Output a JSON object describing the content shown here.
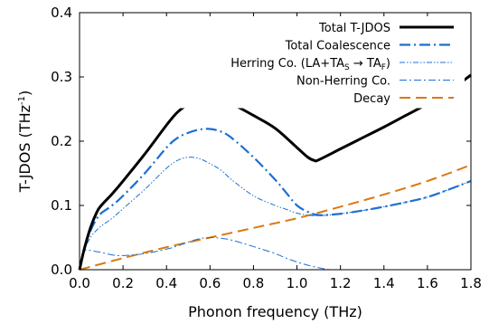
{
  "chart_data": {
    "type": "line",
    "xlabel": "Phonon frequency (THz)",
    "ylabel": "T-JDOS (THz",
    "ylabel_sup": "-1",
    "ylabel_end": ")",
    "xlim": [
      0,
      1.8
    ],
    "ylim": [
      0,
      0.4
    ],
    "x_ticks": [
      "0.0",
      "0.2",
      "0.4",
      "0.6",
      "0.8",
      "1.0",
      "1.2",
      "1.4",
      "1.6",
      "1.8"
    ],
    "y_ticks": [
      "0.0",
      "0.1",
      "0.2",
      "0.3",
      "0.4"
    ],
    "grid": false,
    "legend_position": "top-right",
    "series": [
      {
        "name": "Total T-JDOS",
        "color": "#000000",
        "style": "solid",
        "x": [
          0.0,
          0.02,
          0.05,
          0.08,
          0.1,
          0.15,
          0.2,
          0.3,
          0.4,
          0.45,
          0.5,
          0.55,
          0.6,
          0.65,
          0.7,
          0.8,
          0.9,
          1.0,
          1.05,
          1.08,
          1.1,
          1.2,
          1.3,
          1.4,
          1.5,
          1.6,
          1.7,
          1.8
        ],
        "y": [
          0.0,
          0.03,
          0.065,
          0.09,
          0.1,
          0.118,
          0.138,
          0.18,
          0.225,
          0.245,
          0.257,
          0.262,
          0.265,
          0.263,
          0.258,
          0.24,
          0.22,
          0.19,
          0.175,
          0.17,
          0.171,
          0.188,
          0.205,
          0.222,
          0.24,
          0.258,
          0.278,
          0.303
        ]
      },
      {
        "name": "Total Coalescence",
        "color": "#1c6fd2",
        "style": "dash-dot",
        "x": [
          0.0,
          0.02,
          0.05,
          0.08,
          0.1,
          0.15,
          0.2,
          0.3,
          0.4,
          0.45,
          0.5,
          0.55,
          0.6,
          0.65,
          0.7,
          0.8,
          0.9,
          0.95,
          1.0,
          1.05,
          1.1,
          1.2,
          1.3,
          1.4,
          1.5,
          1.6,
          1.7,
          1.8
        ],
        "y": [
          0.0,
          0.03,
          0.06,
          0.08,
          0.088,
          0.1,
          0.115,
          0.15,
          0.19,
          0.205,
          0.213,
          0.218,
          0.219,
          0.215,
          0.205,
          0.175,
          0.14,
          0.12,
          0.1,
          0.09,
          0.085,
          0.087,
          0.092,
          0.098,
          0.105,
          0.113,
          0.125,
          0.138
        ]
      },
      {
        "name": "Herring Co. (LA+TA_S → TA_F)",
        "color": "#1c6fd2",
        "style": "dash-dot-dot",
        "x": [
          0.0,
          0.02,
          0.05,
          0.08,
          0.1,
          0.15,
          0.2,
          0.3,
          0.4,
          0.45,
          0.5,
          0.55,
          0.6,
          0.65,
          0.7,
          0.8,
          0.9,
          0.95,
          1.0,
          1.05,
          1.1,
          1.2,
          1.3,
          1.4,
          1.5,
          1.6,
          1.7,
          1.8
        ],
        "y": [
          0.0,
          0.028,
          0.05,
          0.062,
          0.068,
          0.08,
          0.095,
          0.125,
          0.158,
          0.17,
          0.175,
          0.173,
          0.165,
          0.155,
          0.14,
          0.115,
          0.1,
          0.094,
          0.088,
          0.085,
          0.084,
          0.087,
          0.092,
          0.098,
          0.105,
          0.113,
          0.125,
          0.138
        ]
      },
      {
        "name": "Non-Herring Co.",
        "color": "#1c6fd2",
        "style": "dash-dot-thin",
        "x": [
          0.0,
          0.02,
          0.05,
          0.08,
          0.1,
          0.15,
          0.2,
          0.3,
          0.4,
          0.45,
          0.5,
          0.55,
          0.6,
          0.65,
          0.7,
          0.8,
          0.9,
          0.95,
          1.0,
          1.05,
          1.1,
          1.15
        ],
        "y": [
          0.0,
          0.028,
          0.03,
          0.028,
          0.027,
          0.023,
          0.022,
          0.025,
          0.032,
          0.037,
          0.043,
          0.048,
          0.05,
          0.049,
          0.046,
          0.036,
          0.025,
          0.018,
          0.012,
          0.007,
          0.003,
          0.0
        ]
      },
      {
        "name": "Decay",
        "color": "#d97a14",
        "style": "dashed",
        "x": [
          0.0,
          0.2,
          0.4,
          0.6,
          0.8,
          1.0,
          1.2,
          1.4,
          1.6,
          1.8
        ],
        "y": [
          0.0,
          0.018,
          0.035,
          0.05,
          0.065,
          0.08,
          0.098,
          0.117,
          0.138,
          0.163
        ]
      }
    ]
  }
}
